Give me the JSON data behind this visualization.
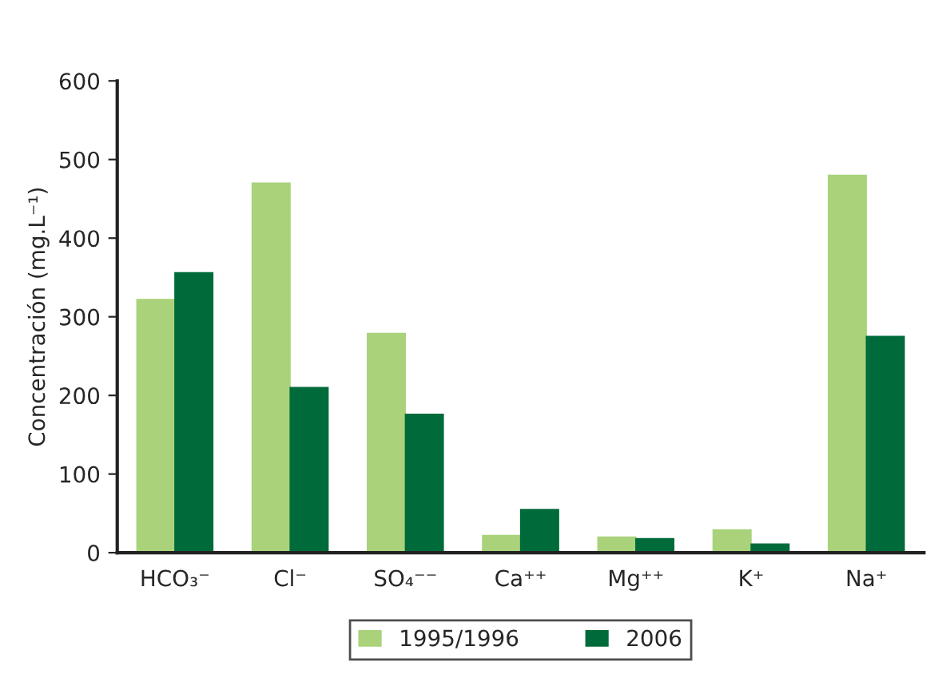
{
  "chart_data": {
    "type": "bar",
    "ylabel": "Concentración (mg.L⁻¹)",
    "categories": [
      "HCO₃⁻",
      "Cl⁻",
      "SO₄⁻⁻",
      "Ca⁺⁺",
      "Mg⁺⁺",
      "K⁺",
      "Na⁺"
    ],
    "series": [
      {
        "name": "1995/1996",
        "color": "#a9d27a",
        "values": [
          322,
          470,
          279,
          22,
          20,
          29,
          480
        ]
      },
      {
        "name": "2006",
        "color": "#006b3a",
        "values": [
          356,
          210,
          176,
          55,
          18,
          11,
          275
        ]
      }
    ],
    "ylim": [
      0,
      600
    ],
    "yticks": [
      0,
      100,
      200,
      300,
      400,
      500,
      600
    ],
    "grid": false,
    "legend": "bottom"
  }
}
